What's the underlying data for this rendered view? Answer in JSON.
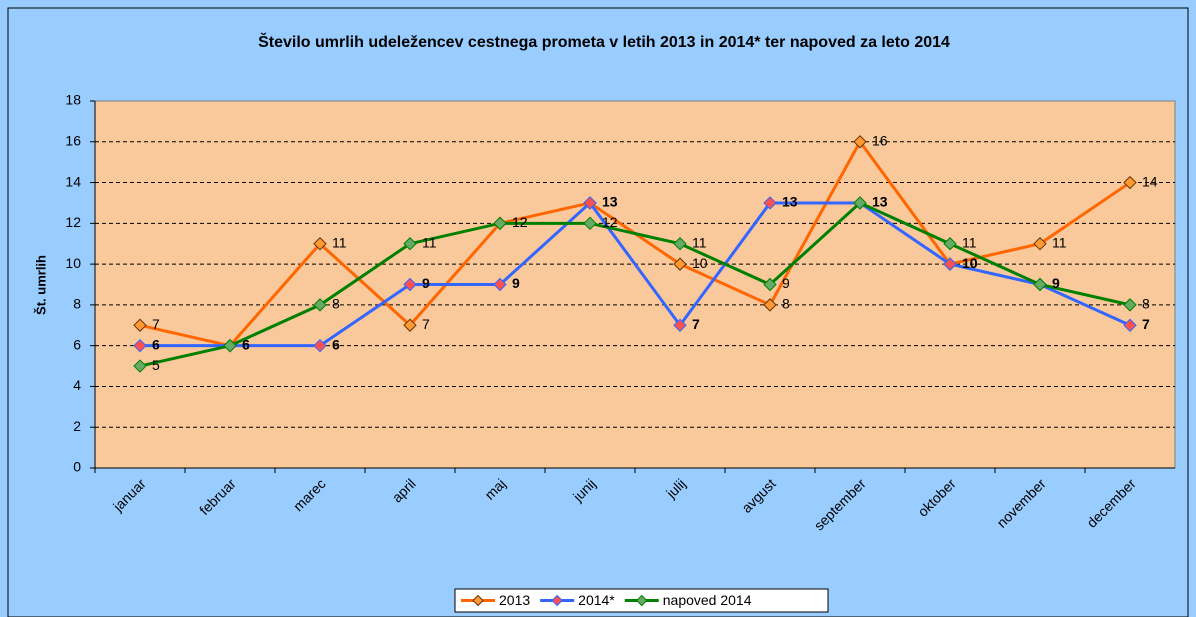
{
  "chart_data": {
    "type": "line",
    "title": "Število umrlih udeležencev cestnega prometa v letih 2013 in 2014* ter napoved za leto 2014",
    "y_label": "Št. umrlih",
    "categories": [
      "januar",
      "februar",
      "marec",
      "april",
      "maj",
      "junij",
      "julij",
      "avgust",
      "september",
      "oktober",
      "november",
      "december"
    ],
    "series": [
      {
        "name": "2013",
        "color": "#ff6600",
        "values": [
          7,
          6,
          11,
          7,
          12,
          13,
          10,
          8,
          16,
          10,
          11,
          14
        ]
      },
      {
        "name": "2014*",
        "color": "#3366ff",
        "values": [
          6,
          6,
          6,
          9,
          9,
          13,
          7,
          13,
          13,
          10,
          9,
          7
        ]
      },
      {
        "name": "napoved 2014",
        "color": "#008000",
        "values": [
          5,
          6,
          8,
          11,
          12,
          12,
          11,
          9,
          13,
          11,
          9,
          8
        ]
      }
    ],
    "ylim": [
      0,
      18
    ],
    "yticks": [
      0,
      2,
      4,
      6,
      8,
      10,
      12,
      14,
      16,
      18
    ],
    "grid": true,
    "legend": "bottom"
  }
}
